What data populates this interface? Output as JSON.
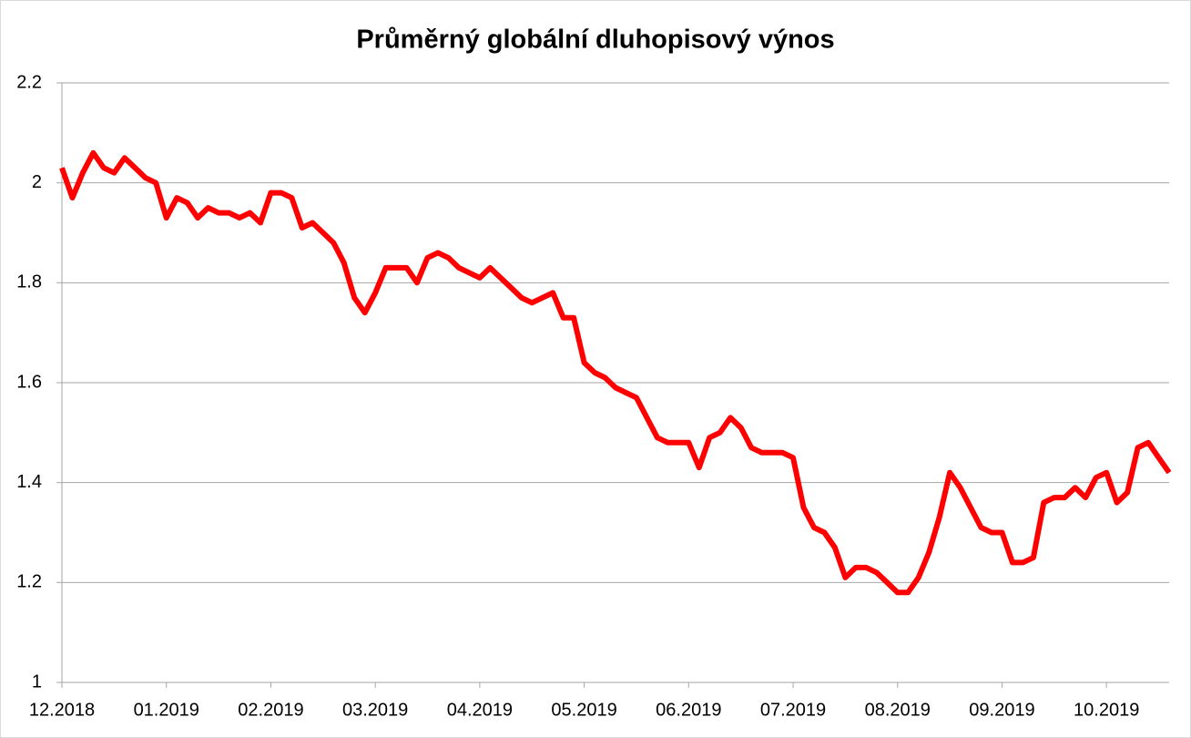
{
  "chart_data": {
    "type": "line",
    "title": "Průměrný globální dluhopisový výnos",
    "categories": [
      "12.2018",
      null,
      null,
      null,
      null,
      null,
      null,
      null,
      null,
      null,
      "01.2019",
      null,
      null,
      null,
      null,
      null,
      null,
      null,
      null,
      null,
      "02.2019",
      null,
      null,
      null,
      null,
      null,
      null,
      null,
      null,
      null,
      "03.2019",
      null,
      null,
      null,
      null,
      null,
      null,
      null,
      null,
      null,
      "04.2019",
      null,
      null,
      null,
      null,
      null,
      null,
      null,
      null,
      null,
      "05.2019",
      null,
      null,
      null,
      null,
      null,
      null,
      null,
      null,
      null,
      "06.2019",
      null,
      null,
      null,
      null,
      null,
      null,
      null,
      null,
      null,
      "07.2019",
      null,
      null,
      null,
      null,
      null,
      null,
      null,
      null,
      null,
      "08.2019",
      null,
      null,
      null,
      null,
      null,
      null,
      null,
      null,
      null,
      "09.2019",
      null,
      null,
      null,
      null,
      null,
      null,
      null,
      null,
      null,
      "10.2019",
      null,
      null,
      null,
      null,
      null,
      null
    ],
    "values": [
      2.03,
      1.97,
      2.02,
      2.06,
      2.03,
      2.02,
      2.05,
      2.03,
      2.01,
      2.0,
      1.93,
      1.97,
      1.96,
      1.93,
      1.95,
      1.94,
      1.94,
      1.93,
      1.94,
      1.92,
      1.98,
      1.98,
      1.97,
      1.91,
      1.92,
      1.9,
      1.88,
      1.84,
      1.77,
      1.74,
      1.78,
      1.83,
      1.83,
      1.83,
      1.8,
      1.85,
      1.86,
      1.85,
      1.83,
      1.82,
      1.81,
      1.83,
      1.81,
      1.79,
      1.77,
      1.76,
      1.77,
      1.78,
      1.73,
      1.73,
      1.64,
      1.62,
      1.61,
      1.59,
      1.58,
      1.57,
      1.53,
      1.49,
      1.48,
      1.48,
      1.48,
      1.43,
      1.49,
      1.5,
      1.53,
      1.51,
      1.47,
      1.46,
      1.46,
      1.46,
      1.45,
      1.35,
      1.31,
      1.3,
      1.27,
      1.21,
      1.23,
      1.23,
      1.22,
      1.2,
      1.18,
      1.18,
      1.21,
      1.26,
      1.33,
      1.42,
      1.39,
      1.35,
      1.31,
      1.3,
      1.3,
      1.24,
      1.24,
      1.25,
      1.36,
      1.37,
      1.37,
      1.39,
      1.37,
      1.41,
      1.42,
      1.36,
      1.38,
      1.47,
      1.48,
      1.45,
      1.42
    ],
    "color": "#ff0000",
    "ylim": [
      1,
      2.2
    ],
    "yticks": [
      1,
      1.2,
      1.4,
      1.6,
      1.8,
      2,
      2.2
    ],
    "grid": true
  }
}
